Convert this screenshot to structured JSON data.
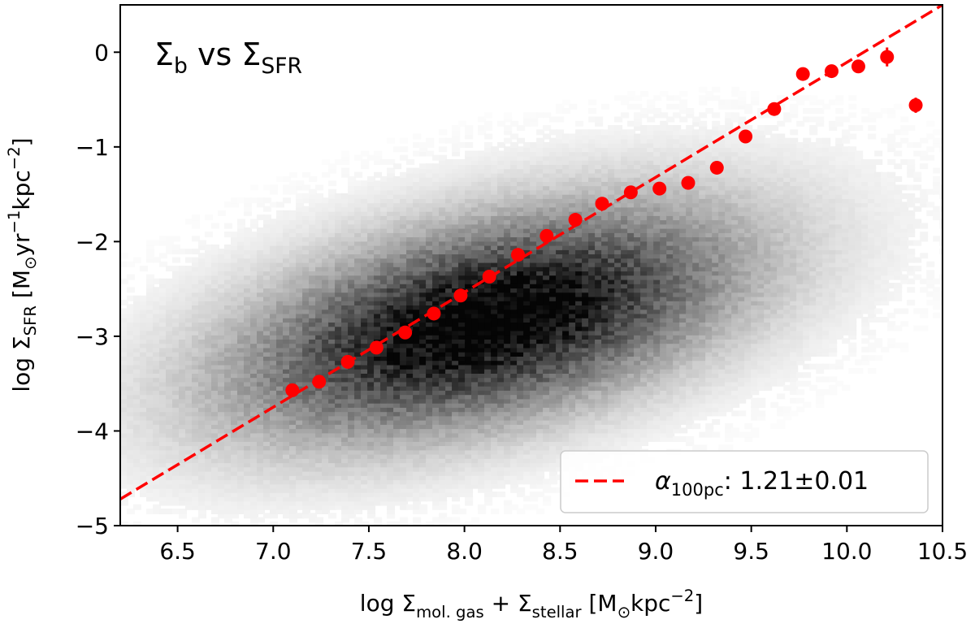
{
  "chart_data": {
    "type": "scatter",
    "title": {
      "main": "Σ",
      "main_sub": "b",
      "mid": " vs Σ",
      "mid_sub": "SFR"
    },
    "xlabel": {
      "prefix": "log Σ",
      "sub1": "mol. gas",
      "mid": " + Σ",
      "sub2": "stellar",
      "unit_open": " [M",
      "unit_sun": "⊙",
      "unit_mid": "kpc",
      "unit_sup": "−2",
      "unit_close": "]"
    },
    "ylabel": {
      "prefix": "log Σ",
      "sub": "SFR",
      "unit_open": " [M",
      "unit_sun": "⊙",
      "unit_yr": "yr",
      "unit_sup1": "−1",
      "unit_kpc": "kpc",
      "unit_sup2": "−2",
      "unit_close": "]"
    },
    "xlim": [
      6.2,
      10.5
    ],
    "ylim": [
      -5,
      0.5
    ],
    "xticks": [
      6.5,
      7.0,
      7.5,
      8.0,
      8.5,
      9.0,
      9.5,
      10.0,
      10.5
    ],
    "xtick_labels": [
      "6.5",
      "7.0",
      "7.5",
      "8.0",
      "8.5",
      "9.0",
      "9.5",
      "10.0",
      "10.5"
    ],
    "yticks": [
      0,
      -1,
      -2,
      -3,
      -4,
      -5
    ],
    "ytick_labels": [
      "0",
      "−1",
      "−2",
      "−3",
      "−4",
      "−5"
    ],
    "fit": {
      "slope": 1.21,
      "x": [
        6.2,
        10.5
      ],
      "y": [
        -4.72,
        0.5
      ],
      "color": "#ff0000",
      "style": "dashed"
    },
    "binned_points": {
      "color": "#ff0000",
      "x": [
        7.1,
        7.24,
        7.39,
        7.54,
        7.69,
        7.84,
        7.98,
        8.13,
        8.28,
        8.43,
        8.58,
        8.72,
        8.87,
        9.02,
        9.17,
        9.32,
        9.47,
        9.62,
        9.77,
        9.92,
        10.06,
        10.21,
        10.36
      ],
      "y": [
        -3.57,
        -3.48,
        -3.27,
        -3.12,
        -2.96,
        -2.76,
        -2.57,
        -2.37,
        -2.14,
        -1.94,
        -1.77,
        -1.6,
        -1.48,
        -1.44,
        -1.38,
        -1.22,
        -0.89,
        -0.6,
        -0.23,
        -0.2,
        -0.15,
        -0.05,
        -0.56
      ],
      "yerr": [
        0.03,
        0.03,
        0.03,
        0.03,
        0.03,
        0.03,
        0.03,
        0.03,
        0.03,
        0.03,
        0.03,
        0.03,
        0.03,
        0.03,
        0.03,
        0.03,
        0.03,
        0.03,
        0.04,
        0.05,
        0.06,
        0.1,
        0.08
      ]
    },
    "density": {
      "description": "2D histogram of pixels",
      "peak_x": 8.1,
      "peak_y": -2.85,
      "colormap": "Greys"
    },
    "legend": {
      "symbol": "α",
      "symbol_sub": "100pc",
      "value_text": ": 1.21±0.01",
      "location": "lower-right"
    }
  }
}
